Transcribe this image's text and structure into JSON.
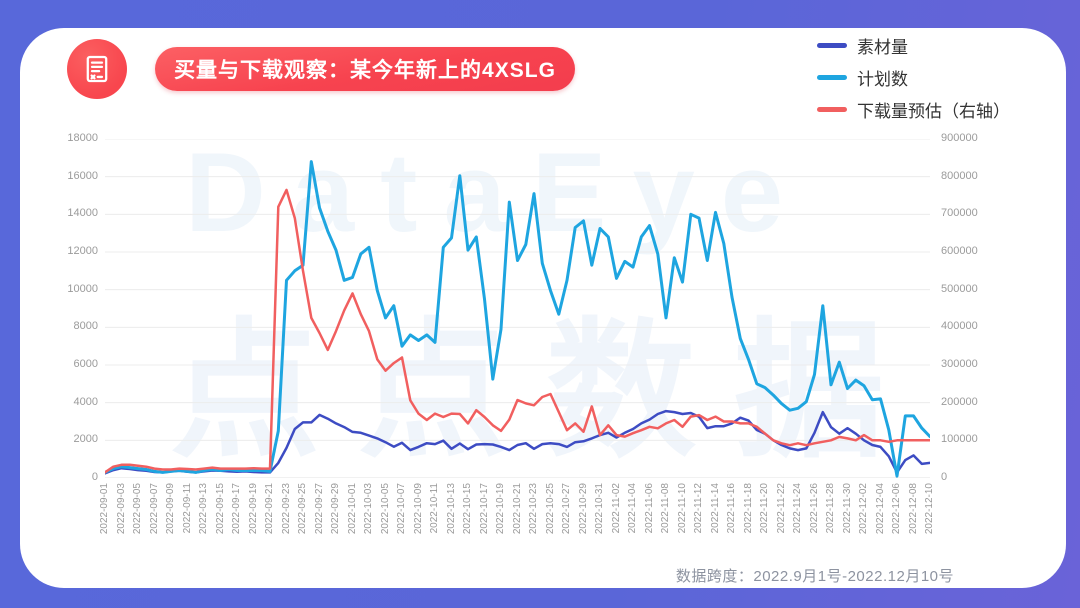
{
  "frame": {
    "background_color": "#5868da",
    "card_color": "#ffffff"
  },
  "header": {
    "icon": "document-icon",
    "title": "买量与下载观察：某今年新上的4XSLG",
    "title_bg_color": "#f8434f"
  },
  "legend": [
    {
      "label": "素材量",
      "color": "#3d4cc3"
    },
    {
      "label": "计划数",
      "color": "#1ea5e0"
    },
    {
      "label": "下载量预估（右轴）",
      "color": "#f15f5f"
    }
  ],
  "watermark": {
    "line1": "DataEye",
    "line2": "点点数据"
  },
  "footer": {
    "caption": "数据跨度：2022.9月1号-2022.12月10号"
  },
  "chart_data": {
    "type": "line",
    "title": "买量与下载观察：某今年新上的4XSLG",
    "x_start": "2022-09-01",
    "x_end": "2022-12-10",
    "x_frequency": "daily",
    "grid": true,
    "legend_position": "top-right",
    "left_axis": {
      "min": 0,
      "max": 18000,
      "step": 2000,
      "ticks": [
        0,
        2000,
        4000,
        6000,
        8000,
        10000,
        12000,
        14000,
        16000,
        18000
      ]
    },
    "right_axis": {
      "min": 0,
      "max": 900000,
      "step": 100000,
      "ticks": [
        0,
        100000,
        200000,
        300000,
        400000,
        500000,
        600000,
        700000,
        800000,
        900000
      ]
    },
    "x_tick_labels": [
      "2022-09-01",
      "2022-09-03",
      "2022-09-05",
      "2022-09-07",
      "2022-09-09",
      "2022-09-11",
      "2022-09-13",
      "2022-09-15",
      "2022-09-17",
      "2022-09-19",
      "2022-09-21",
      "2022-09-23",
      "2022-09-25",
      "2022-09-27",
      "2022-09-29",
      "2022-10-01",
      "2022-10-03",
      "2022-10-05",
      "2022-10-07",
      "2022-10-09",
      "2022-10-11",
      "2022-10-13",
      "2022-10-15",
      "2022-10-17",
      "2022-10-19",
      "2022-10-21",
      "2022-10-23",
      "2022-10-25",
      "2022-10-27",
      "2022-10-29",
      "2022-10-31",
      "2022-11-02",
      "2022-11-04",
      "2022-11-06",
      "2022-11-08",
      "2022-11-10",
      "2022-11-12",
      "2022-11-14",
      "2022-11-16",
      "2022-11-18",
      "2022-11-20",
      "2022-11-22",
      "2022-11-24",
      "2022-11-26",
      "2022-11-28",
      "2022-11-30",
      "2022-12-02",
      "2022-12-04",
      "2022-12-06",
      "2022-12-08",
      "2022-12-10"
    ],
    "series": [
      {
        "name": "素材量",
        "axis": "left",
        "color": "#3d4cc3",
        "values": [
          250,
          420,
          520,
          480,
          420,
          380,
          320,
          300,
          350,
          380,
          330,
          300,
          350,
          400,
          380,
          350,
          330,
          350,
          320,
          300,
          300,
          800,
          1600,
          2600,
          2950,
          2950,
          3350,
          3150,
          2900,
          2700,
          2450,
          2400,
          2250,
          2100,
          1900,
          1660,
          1870,
          1480,
          1650,
          1850,
          1800,
          1980,
          1550,
          1830,
          1530,
          1780,
          1800,
          1780,
          1650,
          1480,
          1750,
          1850,
          1550,
          1800,
          1850,
          1800,
          1650,
          1900,
          1950,
          2100,
          2280,
          2400,
          2150,
          2400,
          2600,
          2900,
          3100,
          3400,
          3550,
          3500,
          3400,
          3450,
          3250,
          2650,
          2750,
          2750,
          2900,
          3200,
          3050,
          2550,
          2350,
          2000,
          1750,
          1570,
          1480,
          1570,
          2400,
          3500,
          2700,
          2350,
          2650,
          2350,
          2000,
          1750,
          1650,
          1150,
          300,
          950,
          1200,
          750,
          800
        ]
      },
      {
        "name": "计划数",
        "axis": "left",
        "color": "#1ea5e0",
        "values": [
          300,
          500,
          600,
          550,
          500,
          450,
          350,
          300,
          350,
          400,
          350,
          300,
          400,
          450,
          400,
          450,
          400,
          400,
          400,
          400,
          350,
          2500,
          10500,
          11000,
          11300,
          16800,
          14350,
          13100,
          12100,
          10500,
          10650,
          11900,
          12250,
          9950,
          8500,
          9150,
          7000,
          7600,
          7300,
          7600,
          7200,
          12250,
          12750,
          16050,
          12100,
          12800,
          9500,
          5250,
          7900,
          14650,
          11550,
          12400,
          15100,
          11400,
          9950,
          8700,
          10500,
          13300,
          13650,
          11300,
          13250,
          12800,
          10600,
          11500,
          11200,
          12800,
          13400,
          11900,
          8500,
          11700,
          10400,
          14000,
          13800,
          11550,
          14100,
          12450,
          9600,
          7400,
          6300,
          5000,
          4800,
          4400,
          3950,
          3600,
          3700,
          4050,
          5500,
          9150,
          4950,
          6150,
          4750,
          5200,
          4900,
          4150,
          4200,
          2550,
          100,
          3300,
          3300,
          2650,
          2200
        ]
      },
      {
        "name": "下载量预估（右轴）",
        "axis": "right",
        "color": "#f15f5f",
        "values": [
          15000,
          30000,
          35000,
          35000,
          32500,
          30000,
          25000,
          22500,
          22500,
          25000,
          24000,
          22500,
          25000,
          27500,
          25000,
          25000,
          25000,
          25000,
          26000,
          25000,
          25000,
          720000,
          765000,
          690000,
          550000,
          425000,
          385000,
          340000,
          390000,
          445000,
          490000,
          435000,
          390000,
          315000,
          285000,
          305000,
          320000,
          206000,
          171000,
          154000,
          171000,
          162000,
          171000,
          170000,
          145000,
          180000,
          162000,
          140000,
          125000,
          155000,
          207000,
          198000,
          193000,
          215000,
          223000,
          175000,
          127000,
          145000,
          123000,
          190000,
          114000,
          140000,
          114000,
          110000,
          119000,
          127000,
          136000,
          132000,
          145000,
          154000,
          136000,
          163000,
          167000,
          154000,
          163000,
          150000,
          150000,
          145000,
          145000,
          136000,
          118000,
          100000,
          92000,
          87000,
          92000,
          87000,
          92000,
          96000,
          100000,
          109000,
          105000,
          100000,
          114000,
          100000,
          100000,
          96000,
          100000,
          100000,
          100000,
          100000,
          100000
        ]
      }
    ]
  }
}
